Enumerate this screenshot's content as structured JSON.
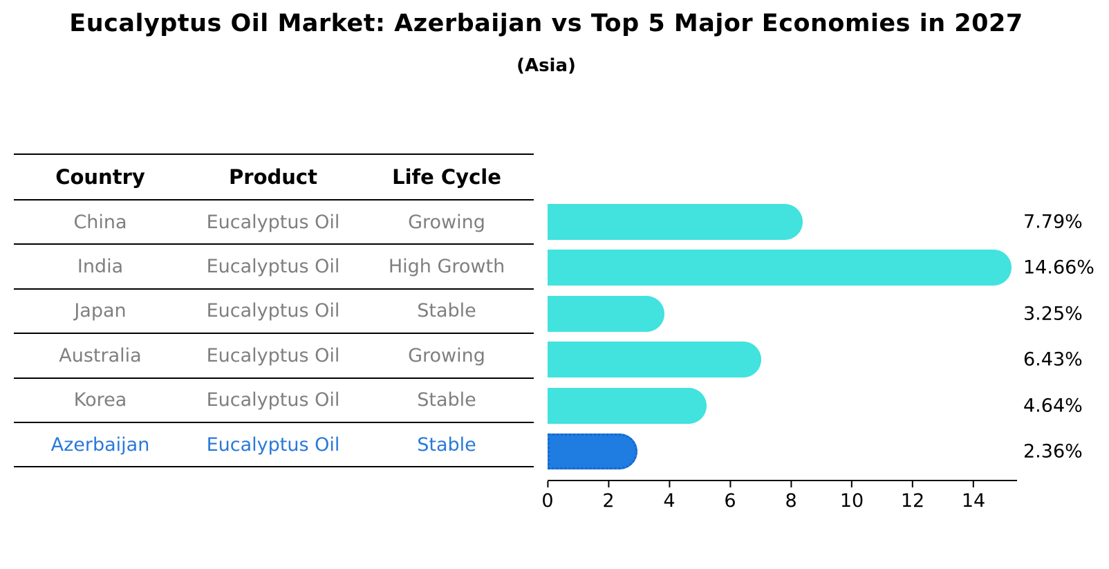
{
  "title": "Eucalyptus Oil Market: Azerbaijan vs Top 5 Major Economies in 2027",
  "subtitle": "(Asia)",
  "table": {
    "headers": [
      "Country",
      "Product",
      "Life Cycle"
    ],
    "rows": [
      {
        "country": "China",
        "product": "Eucalyptus Oil",
        "life_cycle": "Growing",
        "highlight": false
      },
      {
        "country": "India",
        "product": "Eucalyptus Oil",
        "life_cycle": "High Growth",
        "highlight": false
      },
      {
        "country": "Japan",
        "product": "Eucalyptus Oil",
        "life_cycle": "Stable",
        "highlight": false
      },
      {
        "country": "Australia",
        "product": "Eucalyptus Oil",
        "life_cycle": "Growing",
        "highlight": false
      },
      {
        "country": "Korea",
        "product": "Eucalyptus Oil",
        "life_cycle": "Stable",
        "highlight": false
      },
      {
        "country": "Azerbaijan",
        "product": "Eucalyptus Oil",
        "life_cycle": "Stable",
        "highlight": true
      }
    ]
  },
  "chart_data": {
    "type": "bar",
    "orientation": "horizontal",
    "title": "Eucalyptus Oil Market: Azerbaijan vs Top 5 Major Economies in 2027",
    "subtitle": "(Asia)",
    "categories": [
      "China",
      "India",
      "Japan",
      "Australia",
      "Korea",
      "Azerbaijan"
    ],
    "values": [
      7.79,
      14.66,
      3.25,
      6.43,
      4.64,
      2.36
    ],
    "value_labels": [
      "7.79%",
      "14.66%",
      "3.25%",
      "6.43%",
      "4.64%",
      "2.36%"
    ],
    "x_ticks": [
      0,
      2,
      4,
      6,
      8,
      10,
      12,
      14
    ],
    "xlim": [
      0,
      15.43
    ],
    "xlabel": "",
    "ylabel": "",
    "grid": false,
    "legend": false,
    "bar_color": "#42E2DE",
    "highlight_index": 5,
    "highlight_bar_color": "#1F7CE0",
    "highlight_border_color": "#1766CC"
  },
  "colors": {
    "row_text": "#7f7f7f",
    "highlight_text": "#2979D9",
    "header_text": "#000000",
    "axis": "#000000"
  }
}
